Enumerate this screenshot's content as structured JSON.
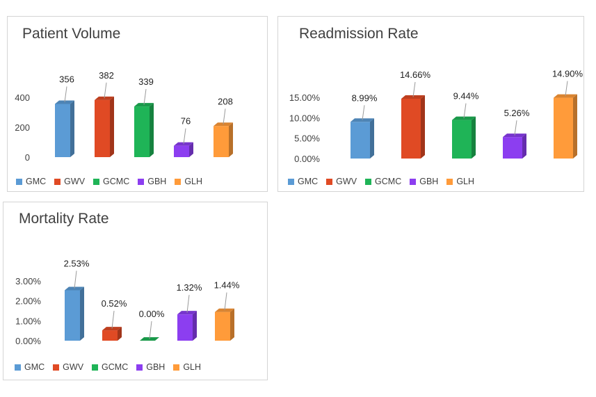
{
  "legend": [
    "GMC",
    "GWV",
    "GCMC",
    "GBH",
    "GLH"
  ],
  "colors": [
    "#5b9bd5",
    "#e04a24",
    "#1fb457",
    "#8c3ef0",
    "#ff9b3a"
  ],
  "chart_data": [
    {
      "type": "bar",
      "title": "Patient Volume",
      "categories": [
        "GMC",
        "GWV",
        "GCMC",
        "GBH",
        "GLH"
      ],
      "values": [
        356,
        382,
        339,
        76,
        208
      ],
      "data_labels": [
        "356",
        "382",
        "339",
        "76",
        "208"
      ],
      "yticks": [
        "0",
        "200",
        "400"
      ],
      "ytick_values": [
        0,
        200,
        400
      ],
      "ylim": [
        0,
        400
      ],
      "legend_position": "bottom"
    },
    {
      "type": "bar",
      "title": "Readmission Rate",
      "categories": [
        "GMC",
        "GWV",
        "GCMC",
        "GBH",
        "GLH"
      ],
      "values": [
        8.99,
        14.66,
        9.44,
        5.26,
        14.9
      ],
      "data_labels": [
        "8.99%",
        "14.66%",
        "9.44%",
        "5.26%",
        "14.90%"
      ],
      "yticks": [
        "0.00%",
        "5.00%",
        "10.00%",
        "15.00%"
      ],
      "ytick_values": [
        0,
        5,
        10,
        15
      ],
      "ylim": [
        0,
        15
      ],
      "legend_position": "bottom"
    },
    {
      "type": "bar",
      "title": "Mortality Rate",
      "categories": [
        "GMC",
        "GWV",
        "GCMC",
        "GBH",
        "GLH"
      ],
      "values": [
        2.53,
        0.52,
        0.0,
        1.32,
        1.44
      ],
      "data_labels": [
        "2.53%",
        "0.52%",
        "0.00%",
        "1.32%",
        "1.44%"
      ],
      "yticks": [
        "0.00%",
        "1.00%",
        "2.00%",
        "3.00%"
      ],
      "ytick_values": [
        0,
        1,
        2,
        3
      ],
      "ylim": [
        0,
        3
      ],
      "legend_position": "bottom"
    }
  ]
}
